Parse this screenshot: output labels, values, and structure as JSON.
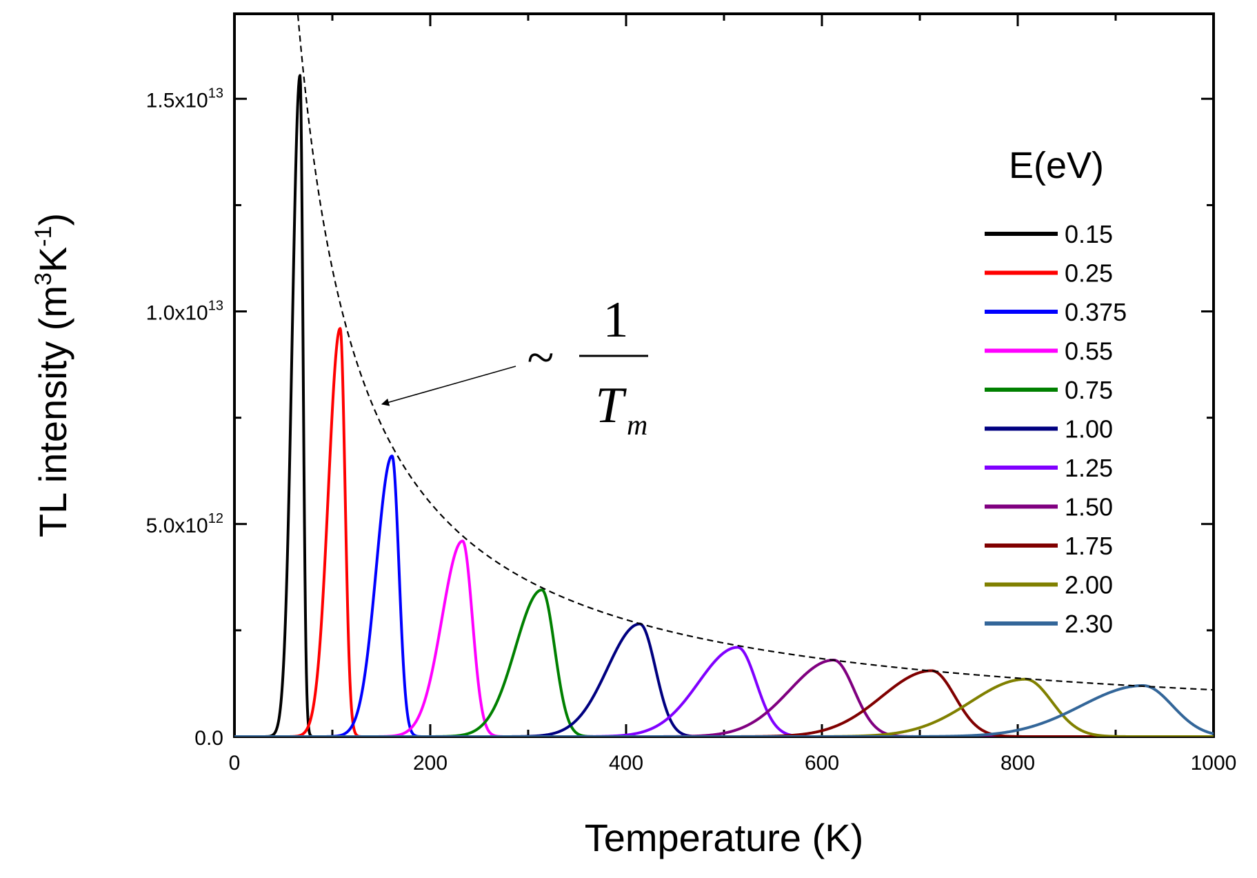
{
  "chart_data": {
    "type": "line",
    "xlabel": "Temperature (K)",
    "ylabel": "TL intensity (m",
    "ylabel_sup1": "3",
    "ylabel_mid": "K",
    "ylabel_sup2": "-1",
    "ylabel_end": ")",
    "xlim": [
      0,
      1000
    ],
    "ylim": [
      0,
      17000000000000.0
    ],
    "x_ticks": [
      {
        "value": 0,
        "label": "0"
      },
      {
        "value": 200,
        "label": "200"
      },
      {
        "value": 400,
        "label": "400"
      },
      {
        "value": 600,
        "label": "600"
      },
      {
        "value": 800,
        "label": "800"
      },
      {
        "value": 1000,
        "label": "1000"
      }
    ],
    "x_minor_ticks": [
      100,
      300,
      500,
      700,
      900
    ],
    "y_ticks": [
      {
        "value": 0,
        "base": "0.0",
        "exp": ""
      },
      {
        "value": 5000000000000.0,
        "base": "5.0x10",
        "exp": "12"
      },
      {
        "value": 10000000000000.0,
        "base": "1.0x10",
        "exp": "13"
      },
      {
        "value": 15000000000000.0,
        "base": "1.5x10",
        "exp": "13"
      }
    ],
    "y_minor_ticks": [
      2500000000000.0,
      7500000000000.0,
      12500000000000.0
    ],
    "legend_title": "E(eV)",
    "series": [
      {
        "name": "0.15",
        "color": "#000000",
        "peak_x": 67,
        "peak_y": 15550000000000.0,
        "left_width": 8,
        "right_width": 3
      },
      {
        "name": "0.25",
        "color": "#ff0000",
        "peak_x": 108,
        "peak_y": 9600000000000.0,
        "left_width": 12,
        "right_width": 5
      },
      {
        "name": "0.375",
        "color": "#0000ff",
        "peak_x": 161,
        "peak_y": 6600000000000.0,
        "left_width": 16,
        "right_width": 7
      },
      {
        "name": "0.55",
        "color": "#ff00ff",
        "peak_x": 233,
        "peak_y": 4600000000000.0,
        "left_width": 21,
        "right_width": 10
      },
      {
        "name": "0.75",
        "color": "#008000",
        "peak_x": 314,
        "peak_y": 3450000000000.0,
        "left_width": 27,
        "right_width": 13
      },
      {
        "name": "1.00",
        "color": "#000080",
        "peak_x": 414,
        "peak_y": 2650000000000.0,
        "left_width": 33,
        "right_width": 16
      },
      {
        "name": "1.25",
        "color": "#8000ff",
        "peak_x": 514,
        "peak_y": 2100000000000.0,
        "left_width": 40,
        "right_width": 19
      },
      {
        "name": "1.50",
        "color": "#800080",
        "peak_x": 612,
        "peak_y": 1800000000000.0,
        "left_width": 45,
        "right_width": 21
      },
      {
        "name": "1.75",
        "color": "#800000",
        "peak_x": 712,
        "peak_y": 1550000000000.0,
        "left_width": 51,
        "right_width": 24
      },
      {
        "name": "2.00",
        "color": "#808000",
        "peak_x": 808,
        "peak_y": 1350000000000.0,
        "left_width": 56,
        "right_width": 27
      },
      {
        "name": "2.30",
        "color": "#336699",
        "peak_x": 928,
        "peak_y": 1200000000000.0,
        "left_width": 63,
        "right_width": 30
      }
    ],
    "envelope": {
      "type": "inverse",
      "constant": 1100000000000000.0,
      "x_from": 63,
      "x_to": 1000,
      "color": "#000000"
    },
    "annotation": {
      "prefix": "~",
      "numerator": "1",
      "denominator": "T",
      "subscript": "m",
      "arrow_to_x": 140
    }
  }
}
